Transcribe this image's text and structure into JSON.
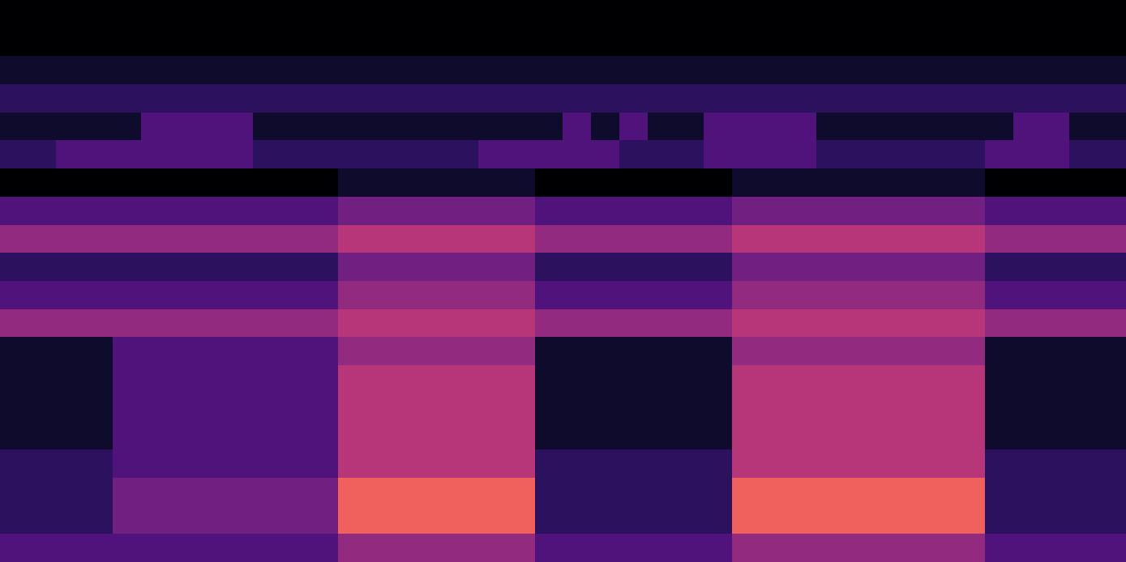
{
  "chart_data": {
    "type": "heatmap",
    "color": "magma",
    "tick_labels": false,
    "zlim": [
      0,
      12
    ],
    "cells": [
      [
        0,
        0,
        0,
        0,
        0,
        0,
        0,
        0,
        0,
        0,
        0,
        0,
        0,
        0,
        0,
        0,
        0,
        0,
        0,
        0,
        0,
        0,
        0,
        0,
        0,
        0,
        0,
        0,
        0,
        0,
        0,
        0,
        0,
        0,
        0,
        0,
        0,
        0,
        0,
        0
      ],
      [
        0,
        0,
        0,
        0,
        0,
        0,
        0,
        0,
        0,
        0,
        0,
        0,
        0,
        0,
        0,
        0,
        0,
        0,
        0,
        0,
        0,
        0,
        0,
        0,
        0,
        0,
        0,
        0,
        0,
        0,
        0,
        0,
        0,
        0,
        0,
        0,
        0,
        0,
        0,
        0
      ],
      [
        1,
        1,
        1,
        1,
        1,
        1,
        1,
        1,
        1,
        1,
        1,
        1,
        1,
        1,
        1,
        1,
        1,
        1,
        1,
        1,
        1,
        1,
        1,
        1,
        1,
        1,
        1,
        1,
        1,
        1,
        1,
        1,
        1,
        1,
        1,
        1,
        1,
        1,
        1,
        1
      ],
      [
        2,
        2,
        2,
        2,
        2,
        2,
        2,
        2,
        2,
        2,
        2,
        2,
        2,
        2,
        2,
        2,
        2,
        2,
        2,
        2,
        2,
        2,
        2,
        2,
        2,
        2,
        2,
        2,
        2,
        2,
        2,
        2,
        2,
        2,
        2,
        2,
        2,
        2,
        2,
        2
      ],
      [
        1,
        1,
        1,
        1,
        1,
        3,
        3,
        3,
        3,
        1,
        1,
        1,
        1,
        1,
        1,
        1,
        1,
        1,
        1,
        1,
        3,
        1,
        3,
        1,
        1,
        3,
        3,
        3,
        3,
        1,
        1,
        1,
        1,
        1,
        1,
        1,
        3,
        3,
        1,
        1
      ],
      [
        2,
        2,
        3,
        3,
        3,
        3,
        3,
        3,
        3,
        2,
        2,
        2,
        2,
        2,
        2,
        2,
        2,
        3,
        3,
        3,
        3,
        3,
        2,
        2,
        2,
        3,
        3,
        3,
        3,
        2,
        2,
        2,
        2,
        2,
        2,
        3,
        3,
        3,
        2,
        2
      ],
      [
        0,
        0,
        0,
        0,
        0,
        0,
        0,
        0,
        0,
        0,
        0,
        0,
        1,
        1,
        1,
        1,
        1,
        1,
        1,
        0,
        0,
        0,
        0,
        0,
        0,
        0,
        1,
        1,
        1,
        1,
        1,
        1,
        1,
        1,
        1,
        0,
        0,
        0,
        0,
        0
      ],
      [
        3,
        3,
        3,
        3,
        3,
        3,
        3,
        3,
        3,
        3,
        3,
        3,
        4,
        4,
        4,
        4,
        4,
        4,
        4,
        3,
        3,
        3,
        3,
        3,
        3,
        3,
        4,
        4,
        4,
        4,
        4,
        4,
        4,
        4,
        4,
        3,
        3,
        3,
        3,
        3
      ],
      [
        5,
        5,
        5,
        5,
        5,
        5,
        5,
        5,
        5,
        5,
        5,
        5,
        6,
        6,
        6,
        6,
        6,
        6,
        6,
        5,
        5,
        5,
        5,
        5,
        5,
        5,
        6,
        6,
        6,
        6,
        6,
        6,
        6,
        6,
        6,
        5,
        5,
        5,
        5,
        5
      ],
      [
        2,
        2,
        2,
        2,
        2,
        2,
        2,
        2,
        2,
        2,
        2,
        2,
        4,
        4,
        4,
        4,
        4,
        4,
        4,
        2,
        2,
        2,
        2,
        2,
        2,
        2,
        4,
        4,
        4,
        4,
        4,
        4,
        4,
        4,
        4,
        2,
        2,
        2,
        2,
        2
      ],
      [
        3,
        3,
        3,
        3,
        3,
        3,
        3,
        3,
        3,
        3,
        3,
        3,
        5,
        5,
        5,
        5,
        5,
        5,
        5,
        3,
        3,
        3,
        3,
        3,
        3,
        3,
        5,
        5,
        5,
        5,
        5,
        5,
        5,
        5,
        5,
        3,
        3,
        3,
        3,
        3
      ],
      [
        5,
        5,
        5,
        5,
        5,
        5,
        5,
        5,
        5,
        5,
        5,
        5,
        6,
        6,
        6,
        6,
        6,
        6,
        6,
        5,
        5,
        5,
        5,
        5,
        5,
        5,
        6,
        6,
        6,
        6,
        6,
        6,
        6,
        6,
        6,
        5,
        5,
        5,
        5,
        5
      ],
      [
        1,
        1,
        1,
        1,
        3,
        3,
        3,
        3,
        3,
        3,
        3,
        3,
        5,
        5,
        5,
        5,
        5,
        5,
        5,
        1,
        1,
        1,
        1,
        1,
        1,
        1,
        5,
        5,
        5,
        5,
        5,
        5,
        5,
        5,
        5,
        1,
        1,
        1,
        1,
        1
      ],
      [
        1,
        1,
        1,
        1,
        3,
        3,
        3,
        3,
        3,
        3,
        3,
        3,
        6,
        6,
        6,
        6,
        6,
        6,
        6,
        1,
        1,
        1,
        1,
        1,
        1,
        1,
        6,
        6,
        6,
        6,
        6,
        6,
        6,
        6,
        6,
        1,
        1,
        1,
        1,
        1
      ],
      [
        1,
        1,
        1,
        1,
        3,
        3,
        3,
        3,
        3,
        3,
        3,
        3,
        6,
        6,
        6,
        6,
        6,
        6,
        6,
        1,
        1,
        1,
        1,
        1,
        1,
        1,
        6,
        6,
        6,
        6,
        6,
        6,
        6,
        6,
        6,
        1,
        1,
        1,
        1,
        1
      ],
      [
        1,
        1,
        1,
        1,
        3,
        3,
        3,
        3,
        3,
        3,
        3,
        3,
        6,
        6,
        6,
        6,
        6,
        6,
        6,
        1,
        1,
        1,
        1,
        1,
        1,
        1,
        6,
        6,
        6,
        6,
        6,
        6,
        6,
        6,
        6,
        1,
        1,
        1,
        1,
        1
      ],
      [
        2,
        2,
        2,
        2,
        3,
        3,
        3,
        3,
        3,
        3,
        3,
        3,
        6,
        6,
        6,
        6,
        6,
        6,
        6,
        2,
        2,
        2,
        2,
        2,
        2,
        2,
        6,
        6,
        6,
        6,
        6,
        6,
        6,
        6,
        6,
        2,
        2,
        2,
        2,
        2
      ],
      [
        2,
        2,
        2,
        2,
        4,
        4,
        4,
        4,
        4,
        4,
        4,
        4,
        8,
        8,
        8,
        8,
        8,
        8,
        8,
        2,
        2,
        2,
        2,
        2,
        2,
        2,
        8,
        8,
        8,
        8,
        8,
        8,
        8,
        8,
        8,
        2,
        2,
        2,
        2,
        2
      ],
      [
        2,
        2,
        2,
        2,
        4,
        4,
        4,
        4,
        4,
        4,
        4,
        4,
        8,
        8,
        8,
        8,
        8,
        8,
        8,
        2,
        2,
        2,
        2,
        2,
        2,
        2,
        8,
        8,
        8,
        8,
        8,
        8,
        8,
        8,
        8,
        2,
        2,
        2,
        2,
        2
      ],
      [
        3,
        3,
        3,
        3,
        3,
        3,
        3,
        3,
        3,
        3,
        3,
        3,
        5,
        5,
        5,
        5,
        5,
        5,
        5,
        3,
        3,
        3,
        3,
        3,
        3,
        3,
        5,
        5,
        5,
        5,
        5,
        5,
        5,
        5,
        5,
        3,
        3,
        3,
        3,
        3
      ]
    ]
  }
}
